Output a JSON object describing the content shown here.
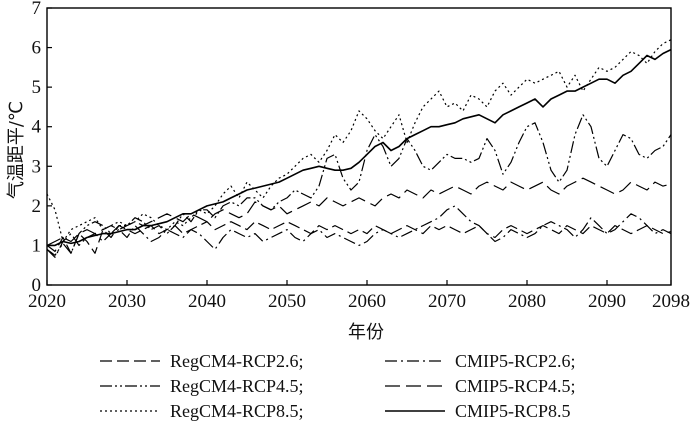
{
  "chart_data": {
    "type": "line",
    "xlabel": "年份",
    "ylabel": "气温距平/℃",
    "xlim": [
      2020,
      2098
    ],
    "ylim": [
      0,
      7
    ],
    "xticks": [
      "2020",
      "2030",
      "2040",
      "2050",
      "2060",
      "2070",
      "2080",
      "2090",
      "2098"
    ],
    "yticks": [
      "0",
      "1",
      "2",
      "3",
      "4",
      "5",
      "6",
      "7"
    ],
    "grid": false,
    "legend_position": "bottom",
    "x": [
      2020,
      2021,
      2022,
      2023,
      2024,
      2025,
      2026,
      2027,
      2028,
      2029,
      2030,
      2031,
      2032,
      2033,
      2034,
      2035,
      2036,
      2037,
      2038,
      2039,
      2040,
      2041,
      2042,
      2043,
      2044,
      2045,
      2046,
      2047,
      2048,
      2049,
      2050,
      2051,
      2052,
      2053,
      2054,
      2055,
      2056,
      2057,
      2058,
      2059,
      2060,
      2061,
      2062,
      2063,
      2064,
      2065,
      2066,
      2067,
      2068,
      2069,
      2070,
      2071,
      2072,
      2073,
      2074,
      2075,
      2076,
      2077,
      2078,
      2079,
      2080,
      2081,
      2082,
      2083,
      2084,
      2085,
      2086,
      2087,
      2088,
      2089,
      2090,
      2091,
      2092,
      2093,
      2094,
      2095,
      2096,
      2097,
      2098
    ],
    "series": [
      {
        "name": "RegCM4-RCP2.6;",
        "dash": "12,5",
        "values": [
          1.0,
          0.85,
          1.2,
          0.8,
          1.3,
          1.1,
          0.8,
          1.4,
          1.2,
          1.5,
          1.4,
          1.3,
          1.4,
          1.5,
          1.3,
          1.4,
          1.5,
          1.3,
          1.4,
          1.5,
          1.6,
          1.4,
          1.5,
          1.6,
          1.5,
          1.4,
          1.6,
          1.5,
          1.4,
          1.5,
          1.6,
          1.5,
          1.4,
          1.3,
          1.5,
          1.4,
          1.5,
          1.4,
          1.3,
          1.4,
          1.3,
          1.5,
          1.4,
          1.3,
          1.4,
          1.5,
          1.4,
          1.3,
          1.5,
          1.4,
          1.5,
          1.4,
          1.3,
          1.4,
          1.5,
          1.3,
          1.2,
          1.4,
          1.5,
          1.4,
          1.3,
          1.4,
          1.5,
          1.4,
          1.3,
          1.5,
          1.4,
          1.3,
          1.5,
          1.4,
          1.3,
          1.5,
          1.4,
          1.3,
          1.4,
          1.5,
          1.4,
          1.3,
          1.35
        ]
      },
      {
        "name": "RegCM4-RCP4.5;",
        "dash": "12,3,2,3,2,3",
        "values": [
          0.9,
          0.75,
          1.05,
          0.8,
          1.3,
          1.5,
          1.6,
          1.5,
          1.3,
          1.5,
          1.5,
          1.7,
          1.6,
          1.4,
          1.5,
          1.3,
          1.5,
          1.8,
          1.6,
          1.9,
          1.9,
          1.7,
          2.0,
          2.1,
          2.0,
          2.2,
          2.2,
          2.0,
          1.9,
          2.1,
          2.2,
          2.4,
          2.3,
          2.2,
          2.5,
          3.2,
          3.3,
          2.7,
          2.4,
          2.6,
          3.4,
          3.8,
          3.5,
          3.0,
          3.2,
          3.7,
          3.4,
          3.0,
          2.9,
          3.1,
          3.3,
          3.2,
          3.2,
          3.1,
          3.2,
          3.7,
          3.4,
          2.8,
          3.1,
          3.6,
          4.0,
          4.1,
          3.6,
          2.9,
          2.6,
          2.9,
          3.8,
          4.3,
          4.0,
          3.2,
          3.0,
          3.4,
          3.8,
          3.7,
          3.3,
          3.2,
          3.4,
          3.5,
          3.8
        ]
      },
      {
        "name": "RegCM4-RCP8.5;",
        "dash": "2,3",
        "values": [
          2.3,
          1.9,
          1.1,
          1.4,
          1.5,
          1.6,
          1.7,
          1.4,
          1.5,
          1.6,
          1.5,
          1.6,
          1.8,
          1.7,
          1.5,
          1.4,
          1.6,
          1.5,
          1.7,
          1.9,
          1.8,
          2.0,
          2.3,
          2.5,
          2.2,
          2.6,
          2.4,
          2.2,
          2.5,
          2.7,
          2.8,
          3.0,
          3.2,
          3.3,
          3.1,
          3.4,
          3.8,
          3.6,
          3.9,
          4.4,
          4.2,
          3.9,
          3.7,
          4.0,
          4.3,
          3.6,
          4.1,
          4.5,
          4.7,
          4.9,
          4.5,
          4.6,
          4.4,
          4.8,
          4.7,
          4.5,
          4.9,
          5.1,
          4.8,
          5.0,
          5.2,
          5.1,
          5.2,
          5.3,
          5.4,
          5.0,
          5.3,
          4.9,
          5.2,
          5.5,
          5.4,
          5.5,
          5.7,
          5.9,
          5.8,
          5.6,
          5.9,
          6.1,
          6.2
        ]
      },
      {
        "name": "CMIP5-RCP2.6;",
        "dash": "12,4,2,4",
        "values": [
          0.9,
          0.7,
          1.1,
          1.3,
          1.0,
          1.2,
          1.3,
          1.1,
          1.3,
          1.4,
          1.2,
          1.5,
          1.3,
          1.1,
          1.2,
          1.4,
          1.3,
          1.2,
          1.4,
          1.3,
          1.1,
          0.9,
          1.2,
          1.4,
          1.3,
          1.2,
          1.3,
          1.1,
          1.2,
          1.3,
          1.4,
          1.2,
          1.1,
          1.3,
          1.4,
          1.2,
          1.3,
          1.2,
          1.1,
          1.0,
          1.1,
          1.3,
          1.4,
          1.3,
          1.2,
          1.3,
          1.4,
          1.5,
          1.6,
          1.7,
          1.9,
          2.0,
          1.8,
          1.6,
          1.5,
          1.3,
          1.1,
          1.2,
          1.4,
          1.3,
          1.2,
          1.3,
          1.5,
          1.6,
          1.5,
          1.4,
          1.2,
          1.4,
          1.7,
          1.5,
          1.3,
          1.4,
          1.6,
          1.8,
          1.7,
          1.5,
          1.3,
          1.4,
          1.3
        ]
      },
      {
        "name": "CMIP5-RCP4.5;",
        "dash": "15,6",
        "values": [
          1.0,
          1.1,
          1.2,
          1.1,
          1.3,
          1.4,
          1.3,
          1.4,
          1.5,
          1.4,
          1.5,
          1.6,
          1.5,
          1.6,
          1.7,
          1.8,
          1.7,
          1.6,
          1.8,
          1.7,
          1.6,
          1.8,
          1.9,
          1.8,
          1.7,
          1.8,
          2.1,
          2.0,
          1.9,
          2.0,
          1.8,
          1.9,
          2.0,
          2.1,
          2.0,
          2.2,
          2.1,
          2.0,
          2.1,
          2.2,
          2.1,
          2.0,
          2.2,
          2.3,
          2.2,
          2.4,
          2.3,
          2.2,
          2.4,
          2.3,
          2.4,
          2.5,
          2.4,
          2.3,
          2.5,
          2.6,
          2.5,
          2.4,
          2.6,
          2.5,
          2.4,
          2.5,
          2.6,
          2.4,
          2.3,
          2.5,
          2.6,
          2.7,
          2.6,
          2.5,
          2.4,
          2.3,
          2.4,
          2.6,
          2.5,
          2.4,
          2.6,
          2.5,
          2.55
        ]
      },
      {
        "name": "CMIP5-RCP8.5",
        "dash": "",
        "values": [
          1.0,
          1.0,
          1.1,
          1.05,
          1.1,
          1.2,
          1.25,
          1.3,
          1.3,
          1.35,
          1.4,
          1.4,
          1.5,
          1.5,
          1.55,
          1.6,
          1.7,
          1.8,
          1.8,
          1.9,
          2.0,
          2.05,
          2.1,
          2.2,
          2.3,
          2.4,
          2.45,
          2.5,
          2.55,
          2.6,
          2.7,
          2.8,
          2.9,
          2.95,
          3.0,
          2.95,
          2.9,
          2.9,
          2.95,
          3.1,
          3.3,
          3.5,
          3.6,
          3.4,
          3.5,
          3.7,
          3.8,
          3.9,
          4.0,
          4.0,
          4.05,
          4.1,
          4.2,
          4.25,
          4.3,
          4.2,
          4.1,
          4.3,
          4.4,
          4.5,
          4.6,
          4.7,
          4.5,
          4.7,
          4.8,
          4.9,
          4.9,
          5.0,
          5.1,
          5.2,
          5.2,
          5.1,
          5.3,
          5.4,
          5.6,
          5.8,
          5.7,
          5.85,
          5.95
        ]
      }
    ]
  }
}
